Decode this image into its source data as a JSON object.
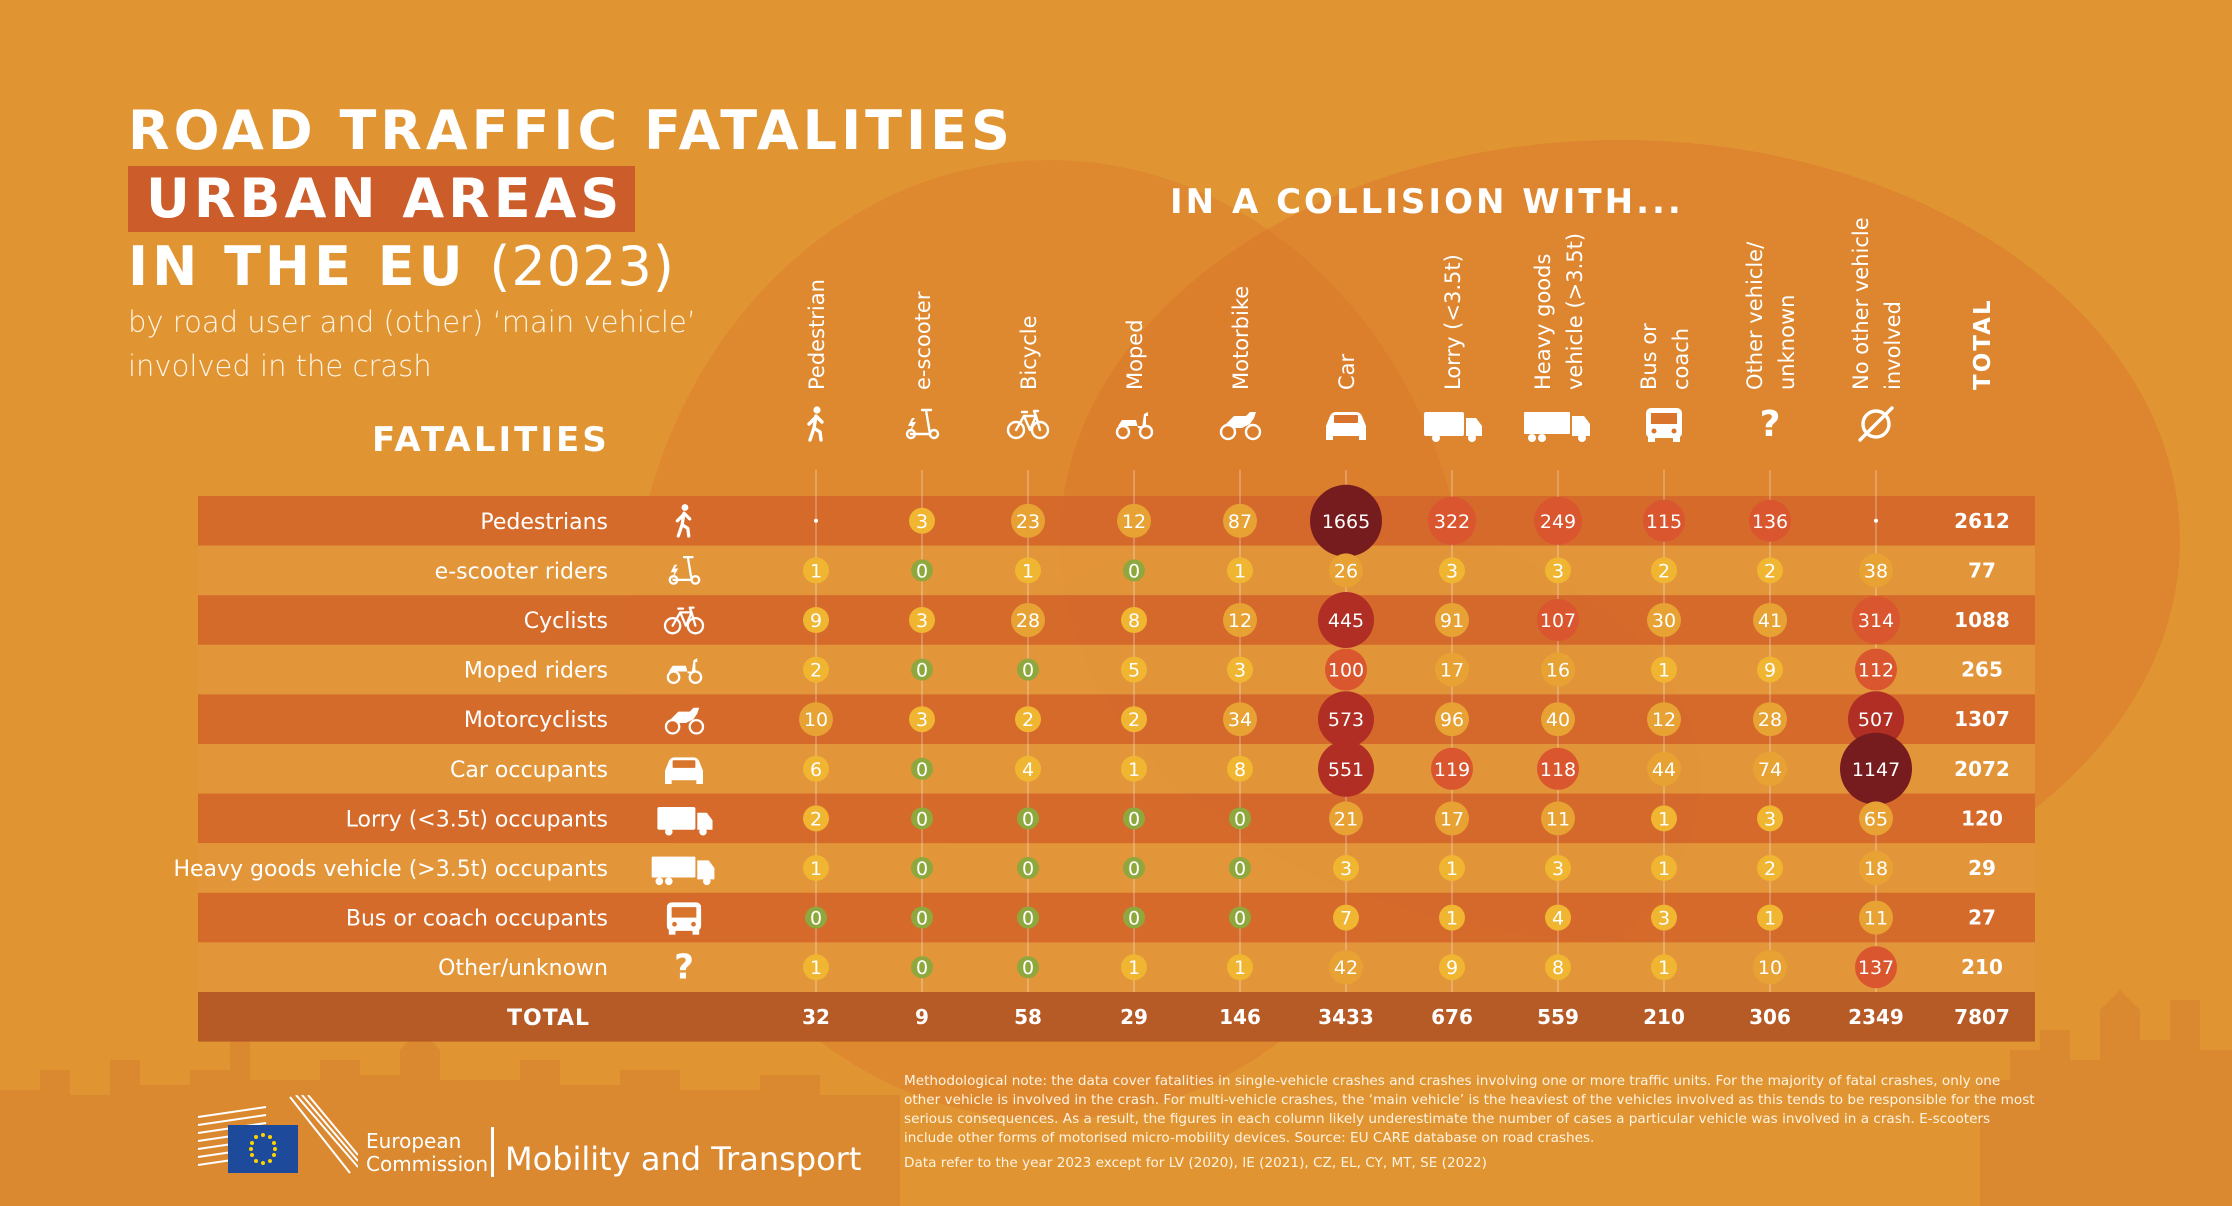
{
  "title": {
    "line1": "ROAD TRAFFIC FATALITIES",
    "line2": "URBAN AREAS",
    "line3": "IN THE EU",
    "year": "(2023)",
    "subtitle_line1": "by road user and (other) ‘main vehicle’",
    "subtitle_line2": "involved in the crash"
  },
  "fatalities_label": "FATALITIES",
  "collision_label": "IN A COLLISION WITH...",
  "chart_data": {
    "type": "table",
    "title": "ROAD TRAFFIC FATALITIES URBAN AREAS IN THE EU (2023)",
    "row_header": "FATALITIES",
    "column_header": "IN A COLLISION WITH...",
    "columns": [
      {
        "label": [
          "Pedestrian"
        ],
        "icon": "pedestrian-icon"
      },
      {
        "label": [
          "e-scooter"
        ],
        "icon": "e-scooter-icon"
      },
      {
        "label": [
          "Bicycle"
        ],
        "icon": "bicycle-icon"
      },
      {
        "label": [
          "Moped"
        ],
        "icon": "moped-icon"
      },
      {
        "label": [
          "Motorbike"
        ],
        "icon": "motorbike-icon"
      },
      {
        "label": [
          "Car"
        ],
        "icon": "car-icon"
      },
      {
        "label": [
          "Lorry (<3.5t)"
        ],
        "icon": "lorry-icon"
      },
      {
        "label": [
          "Heavy goods",
          "vehicle (>3.5t)"
        ],
        "icon": "heavy-goods-vehicle-icon"
      },
      {
        "label": [
          "Bus or",
          "coach"
        ],
        "icon": "bus-icon"
      },
      {
        "label": [
          "Other vehicle/",
          "unknown"
        ],
        "icon": "question-mark-icon"
      },
      {
        "label": [
          "No other vehicle",
          "involved"
        ],
        "icon": "empty-set-icon"
      },
      {
        "label": [
          "TOTAL"
        ],
        "icon": ""
      }
    ],
    "rows": [
      {
        "label": "Pedestrians",
        "icon": "pedestrian-icon",
        "values": [
          null,
          3,
          23,
          12,
          87,
          1665,
          322,
          249,
          115,
          136,
          null
        ],
        "total": 2612
      },
      {
        "label": "e-scooter riders",
        "icon": "e-scooter-icon",
        "values": [
          1,
          0,
          1,
          0,
          1,
          26,
          3,
          3,
          2,
          2,
          38
        ],
        "total": 77
      },
      {
        "label": "Cyclists",
        "icon": "bicycle-icon",
        "values": [
          9,
          3,
          28,
          8,
          12,
          445,
          91,
          107,
          30,
          41,
          314
        ],
        "total": 1088
      },
      {
        "label": "Moped riders",
        "icon": "moped-icon",
        "values": [
          2,
          0,
          0,
          5,
          3,
          100,
          17,
          16,
          1,
          9,
          112
        ],
        "total": 265
      },
      {
        "label": "Motorcyclists",
        "icon": "motorbike-icon",
        "values": [
          10,
          3,
          2,
          2,
          34,
          573,
          96,
          40,
          12,
          28,
          507
        ],
        "total": 1307
      },
      {
        "label": "Car occupants",
        "icon": "car-icon",
        "values": [
          6,
          0,
          4,
          1,
          8,
          551,
          119,
          118,
          44,
          74,
          1147
        ],
        "total": 2072
      },
      {
        "label": "Lorry (<3.5t) occupants",
        "icon": "lorry-icon",
        "values": [
          2,
          0,
          0,
          0,
          0,
          21,
          17,
          11,
          1,
          3,
          65
        ],
        "total": 120
      },
      {
        "label": "Heavy goods vehicle (>3.5t) occupants",
        "icon": "heavy-goods-vehicle-icon",
        "values": [
          1,
          0,
          0,
          0,
          0,
          3,
          1,
          3,
          1,
          2,
          18
        ],
        "total": 29
      },
      {
        "label": "Bus or coach occupants",
        "icon": "bus-icon",
        "values": [
          0,
          0,
          0,
          0,
          0,
          7,
          1,
          4,
          3,
          1,
          11
        ],
        "total": 27
      },
      {
        "label": "Other/unknown",
        "icon": "question-mark-icon",
        "values": [
          1,
          0,
          0,
          1,
          1,
          42,
          9,
          8,
          1,
          10,
          137
        ],
        "total": 210
      }
    ],
    "totals_row": {
      "label": "TOTAL",
      "values": [
        32,
        9,
        58,
        29,
        146,
        3433,
        676,
        559,
        210,
        306,
        2349
      ],
      "total": 7807
    },
    "colors": {
      "background": "#e19532",
      "row_dark": "#d4682b",
      "row_light": "#e3963a",
      "total_row": "#b65a26",
      "title_highlight": "#cc5d2a",
      "bubble_zero": "#8fa83e",
      "bubble_small": "#f0b531",
      "bubble_mid": "#e8a233",
      "bubble_large": "#d9562e",
      "bubble_xlarge": "#b02e24",
      "bubble_max": "#771c1e"
    }
  },
  "footer": {
    "org_line1": "European",
    "org_line2": "Commission",
    "dept": "Mobility and Transport",
    "methodology": "Methodological note: the data cover fatalities in single-vehicle crashes and crashes involving one or more traffic units. For the majority of fatal crashes, only one other vehicle is involved in the crash. For multi-vehicle crashes, the ‘main vehicle’ is the heaviest of the vehicles involved as this tends to be responsible for the most serious consequences. As a result, the figures in each column likely underestimate the number of cases a particular vehicle was involved in a crash. E-scooters include other forms of motorised micro-mobility devices. Source: EU CARE database on road crashes.",
    "data_note": "Data refer to the year 2023 except for LV (2020), IE (2021), CZ, EL, CY, MT, SE (2022)"
  }
}
